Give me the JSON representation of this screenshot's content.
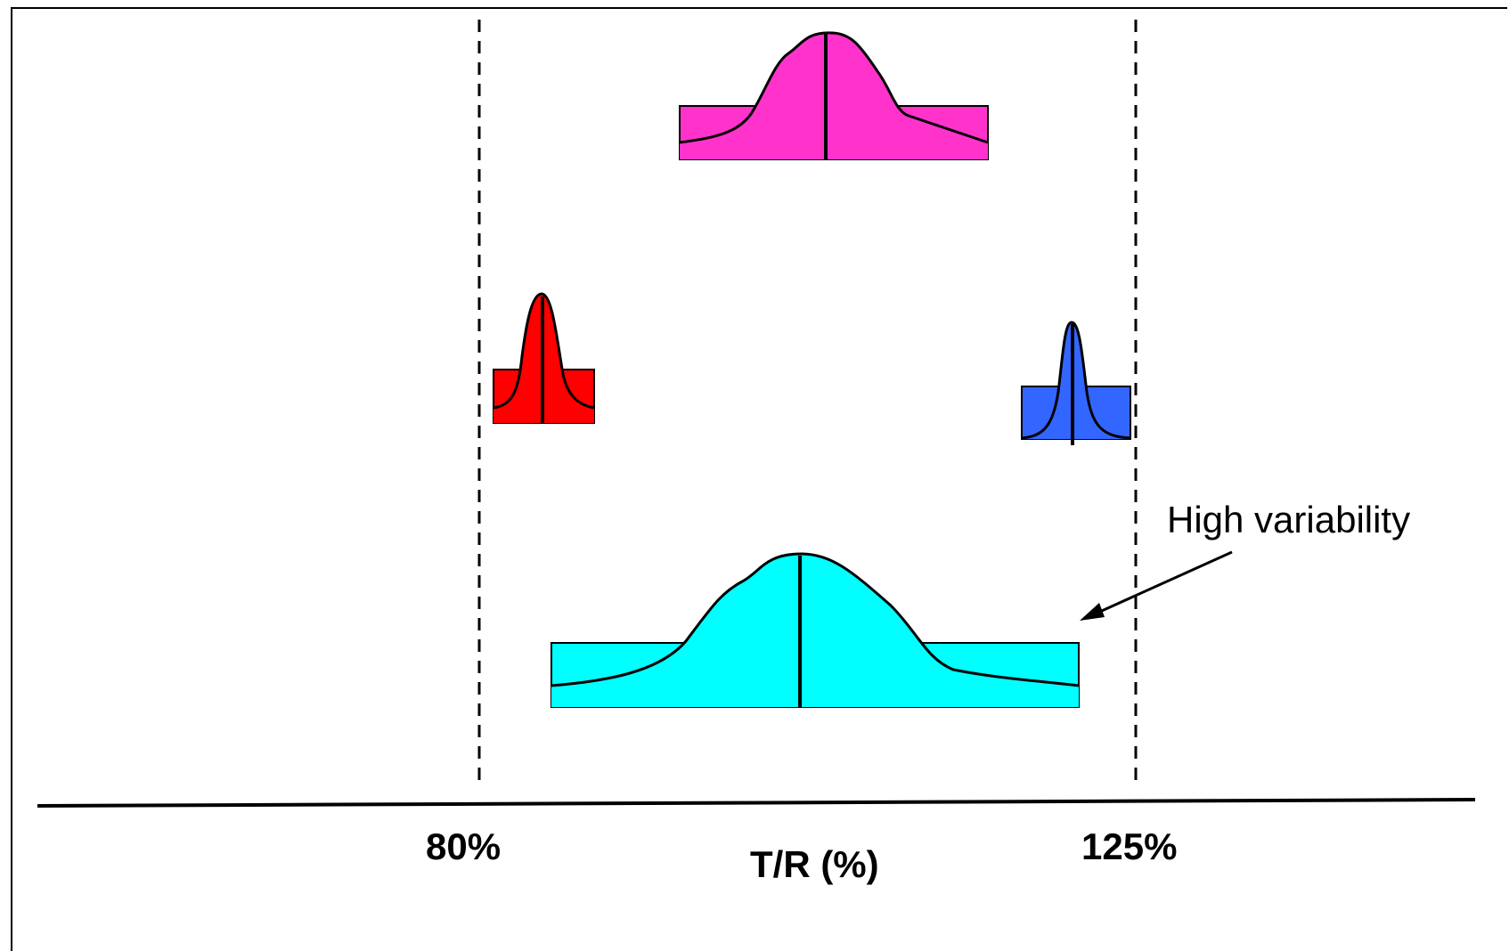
{
  "diagram": {
    "limits": {
      "lower_label": "80%",
      "upper_label": "125%"
    },
    "axis_label": "T/R (%)",
    "annotation": "High variability",
    "distributions": [
      {
        "id": "magenta",
        "color": "#ff33cc"
      },
      {
        "id": "red",
        "color": "#ff0000"
      },
      {
        "id": "blue",
        "color": "#3366ff"
      },
      {
        "id": "cyan",
        "color": "#00ffff"
      }
    ]
  }
}
